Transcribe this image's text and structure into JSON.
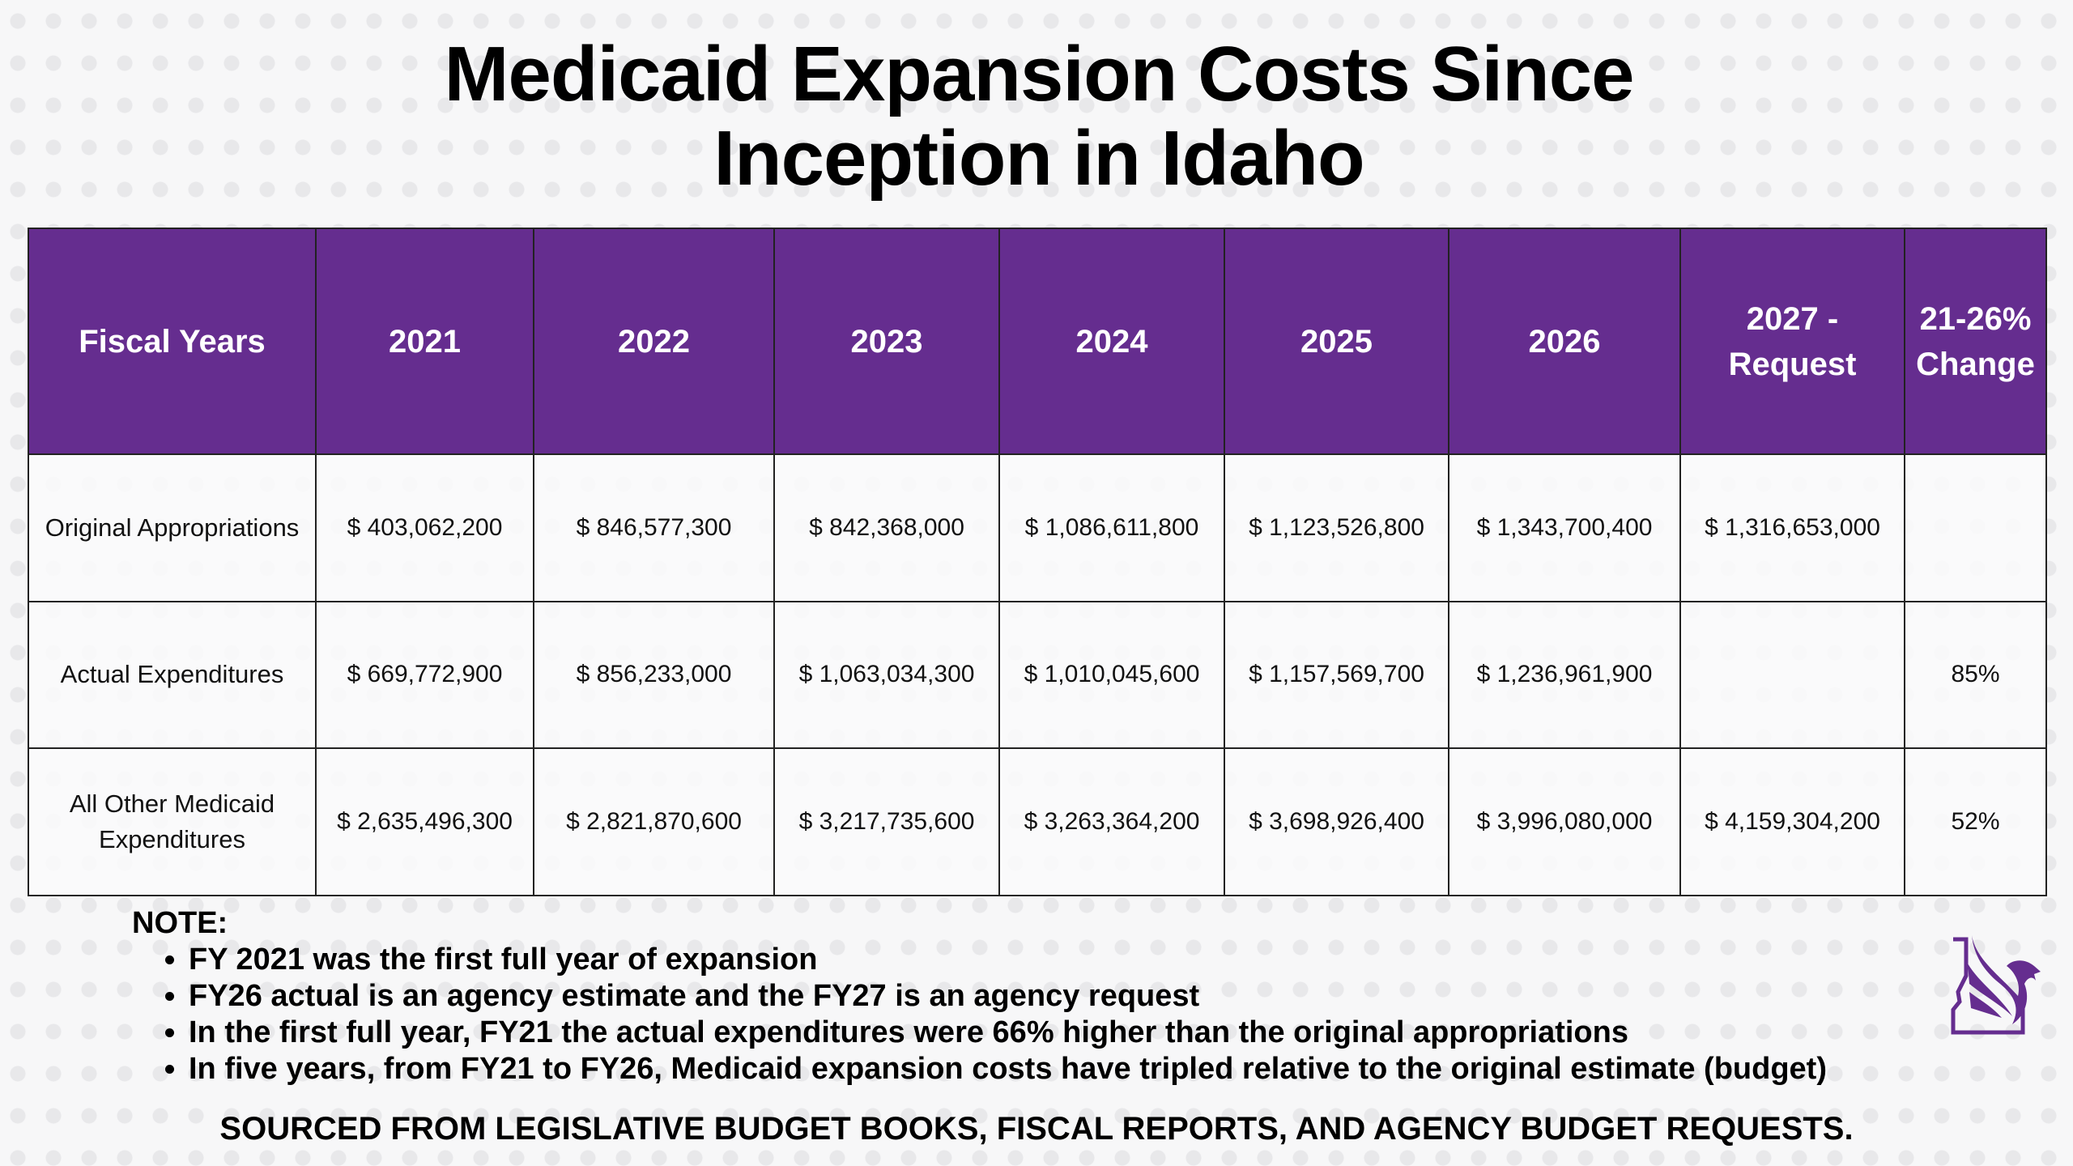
{
  "title_line1": "Medicaid Expansion Costs Since",
  "title_line2": "Inception in Idaho",
  "table": {
    "headers": [
      "Fiscal Years",
      "2021",
      "2022",
      "2023",
      "2024",
      "2025",
      "2026",
      "2027 - Request",
      "21-26% Change"
    ],
    "rows": [
      {
        "label": "Original Appropriations",
        "cells": [
          "$ 403,062,200",
          "$ 846,577,300",
          "$ 842,368,000",
          "$ 1,086,611,800",
          "$ 1,123,526,800",
          "$ 1,343,700,400",
          "$ 1,316,653,000",
          ""
        ]
      },
      {
        "label": "Actual Expenditures",
        "cells": [
          "$ 669,772,900",
          "$ 856,233,000",
          "$ 1,063,034,300",
          "$ 1,010,045,600",
          "$ 1,157,569,700",
          "$ 1,236,961,900",
          "",
          "85%"
        ]
      },
      {
        "label": "All Other Medicaid Expenditures",
        "cells": [
          "$ 2,635,496,300",
          "$ 2,821,870,600",
          "$ 3,217,735,600",
          "$ 3,263,364,200",
          "$ 3,698,926,400",
          "$ 3,996,080,000",
          "$ 4,159,304,200",
          "52%"
        ]
      }
    ]
  },
  "notes": {
    "heading": "NOTE:",
    "items": [
      "FY 2021 was the first full year of expansion",
      "FY26 actual is an agency estimate and the FY27 is an agency request",
      "In the first full year, FY21 the actual expenditures were 66% higher than the original appropriations",
      "In five years, from FY21 to FY26, Medicaid expansion costs have tripled relative to the original estimate (budget)"
    ]
  },
  "source": "SOURCED FROM LEGISLATIVE BUDGET BOOKS, FISCAL REPORTS, AND AGENCY BUDGET REQUESTS.",
  "colors": {
    "accent": "#652d8f"
  },
  "logo_icon": "idaho-eagle-logo-icon"
}
